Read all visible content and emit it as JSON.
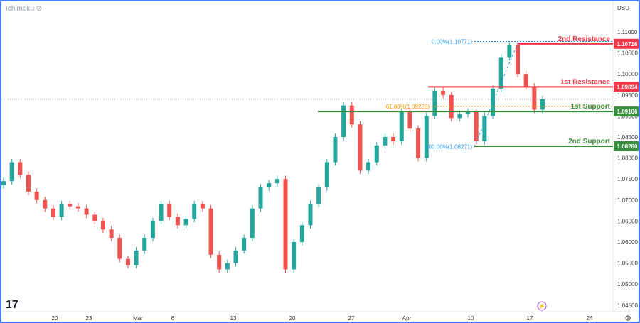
{
  "indicator": {
    "label": "Ichimoku",
    "icon": "eye-crossed-icon"
  },
  "currency": "USD",
  "chart_data": {
    "type": "candlestick",
    "ylim": [
      1.0425,
      1.1125
    ],
    "y_ticks": [
      "1.11000",
      "1.10500",
      "1.10000",
      "1.09500",
      "1.09000",
      "1.08500",
      "1.08000",
      "1.07500",
      "1.07000",
      "1.06500",
      "1.06000",
      "1.05500",
      "1.05000",
      "1.04500"
    ],
    "x_ticks": [
      "20",
      "23",
      "Mar",
      "6",
      "13",
      "20",
      "27",
      "Apr",
      "10",
      "17",
      "24"
    ],
    "closes": [
      1.0745,
      1.079,
      1.076,
      1.072,
      1.07,
      1.068,
      1.066,
      1.069,
      1.0685,
      1.068,
      1.0665,
      1.065,
      1.063,
      1.061,
      1.056,
      1.0545,
      1.058,
      1.061,
      1.065,
      1.069,
      1.066,
      1.064,
      1.0655,
      1.069,
      1.068,
      1.057,
      1.0535,
      1.055,
      1.058,
      1.061,
      1.068,
      1.073,
      1.074,
      1.075,
      1.0535,
      1.06,
      1.064,
      1.069,
      1.073,
      1.079,
      1.085,
      1.0925,
      1.088,
      1.077,
      1.079,
      1.083,
      1.085,
      1.084,
      1.091,
      1.087,
      1.08,
      1.09,
      1.096,
      1.095,
      1.0895,
      1.0905,
      1.091,
      1.084,
      1.09,
      1.0965,
      1.104,
      1.1068,
      1.1,
      1.097,
      1.0915,
      1.094
    ],
    "current_price": 1.094,
    "levels": [
      {
        "name": "2nd Resistance",
        "value": "1.10716",
        "color": "#f23645"
      },
      {
        "name": "1st Resistance",
        "value": "1.09694",
        "color": "#f23645"
      },
      {
        "name": "1st Support",
        "value": "1.09106",
        "color": "#388e3c"
      },
      {
        "name": "2nd Support",
        "value": "1.08280",
        "color": "#388e3c"
      }
    ],
    "fibonacci": [
      {
        "label": "0.00%(1.10771)",
        "value": 1.10771,
        "color": "#2196f3"
      },
      {
        "label": "61.80%(1.09226)",
        "value": 1.09226,
        "color": "#ff9800"
      },
      {
        "label": "100.00%(1.08271)",
        "value": 1.08271,
        "color": "#2196f3"
      }
    ],
    "colors": {
      "up": "#26a69a",
      "down": "#ef5350"
    }
  }
}
